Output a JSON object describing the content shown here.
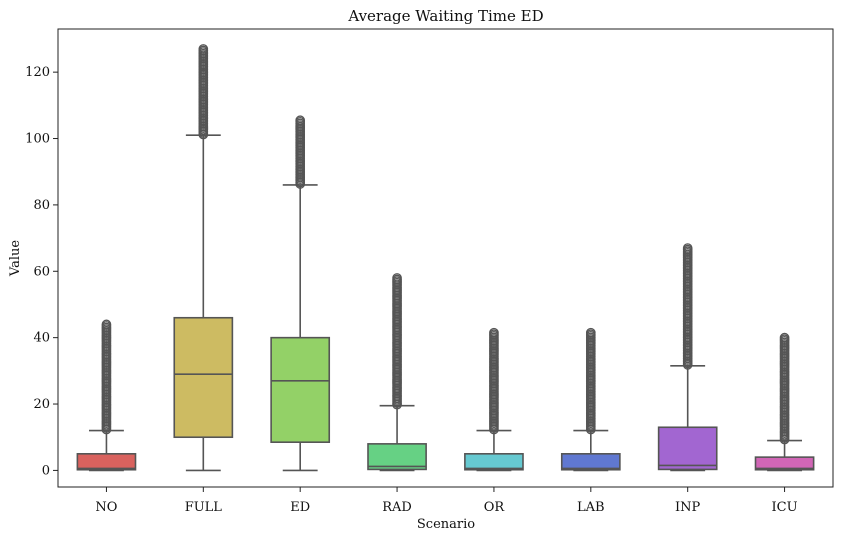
{
  "chart_data": {
    "type": "box",
    "title": "Average Waiting Time ED",
    "xlabel": "Scenario",
    "ylabel": "Value",
    "ylim": [
      -5,
      133
    ],
    "yticks": [
      0,
      20,
      40,
      60,
      80,
      100,
      120
    ],
    "grid": false,
    "categories": [
      "NO",
      "FULL",
      "ED",
      "RAD",
      "OR",
      "LAB",
      "INP",
      "ICU"
    ],
    "colors": [
      "#d9625e",
      "#cdbb62",
      "#93d167",
      "#66d184",
      "#66c9d1",
      "#6078d1",
      "#a266d1",
      "#d166b6"
    ],
    "series": [
      {
        "name": "NO",
        "whisker_low": 0,
        "q1": 0.2,
        "median": 0.6,
        "q3": 5,
        "whisker_high": 12,
        "outlier_min": 12.3,
        "outlier_max": 44
      },
      {
        "name": "FULL",
        "whisker_low": 0,
        "q1": 10,
        "median": 29,
        "q3": 46,
        "whisker_high": 101,
        "outlier_min": 101.2,
        "outlier_max": 127
      },
      {
        "name": "ED",
        "whisker_low": 0,
        "q1": 8.5,
        "median": 27,
        "q3": 40,
        "whisker_high": 86,
        "outlier_min": 86.3,
        "outlier_max": 105.5
      },
      {
        "name": "RAD",
        "whisker_low": 0,
        "q1": 0.3,
        "median": 1.2,
        "q3": 8,
        "whisker_high": 19.5,
        "outlier_min": 19.8,
        "outlier_max": 58
      },
      {
        "name": "OR",
        "whisker_low": 0,
        "q1": 0.2,
        "median": 0.6,
        "q3": 5,
        "whisker_high": 12,
        "outlier_min": 12.3,
        "outlier_max": 41.5
      },
      {
        "name": "LAB",
        "whisker_low": 0,
        "q1": 0.2,
        "median": 0.6,
        "q3": 5,
        "whisker_high": 12,
        "outlier_min": 12.3,
        "outlier_max": 41.5
      },
      {
        "name": "INP",
        "whisker_low": 0,
        "q1": 0.3,
        "median": 1.5,
        "q3": 13,
        "whisker_high": 31.5,
        "outlier_min": 31.8,
        "outlier_max": 67
      },
      {
        "name": "ICU",
        "whisker_low": 0,
        "q1": 0.2,
        "median": 0.6,
        "q3": 4,
        "whisker_high": 9,
        "outlier_min": 9.3,
        "outlier_max": 40
      }
    ]
  }
}
